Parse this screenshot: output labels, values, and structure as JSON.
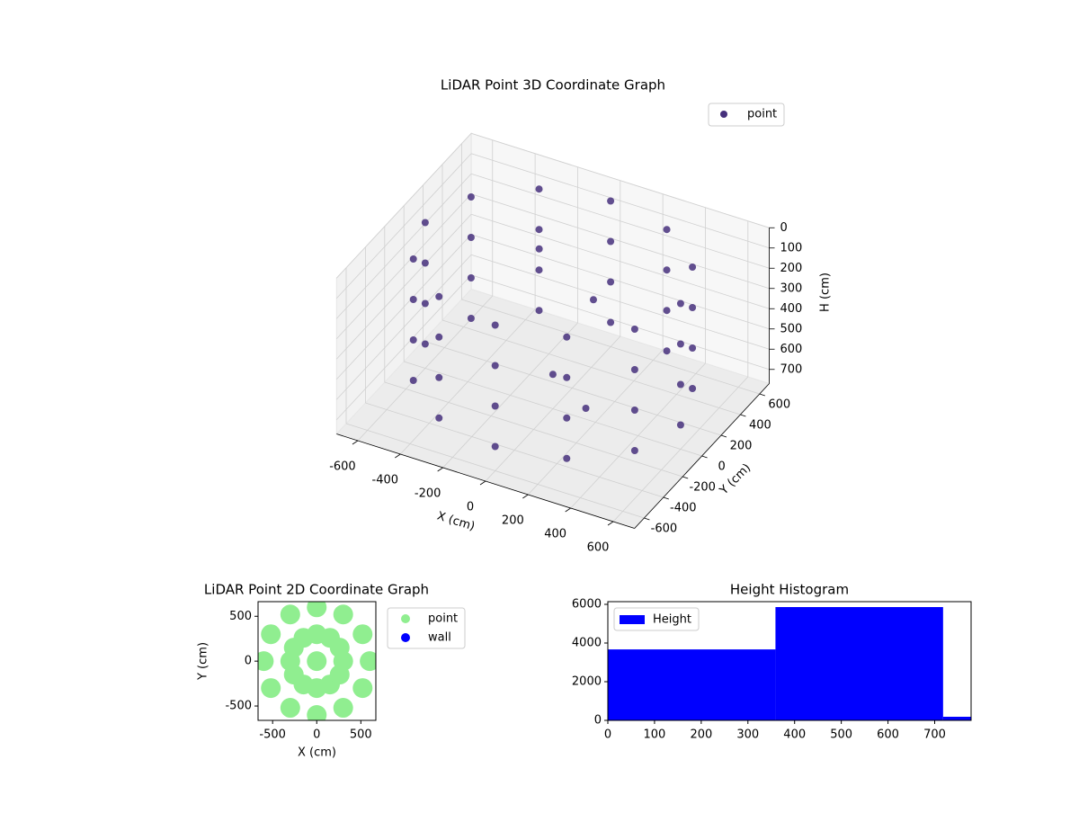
{
  "chart_data": [
    {
      "type": "scatter3d",
      "title": "LiDAR Point 3D Coordinate Graph",
      "xlabel": "X (cm)",
      "ylabel": "Y (cm)",
      "zlabel": "H (cm)",
      "xlim": [
        -700,
        700
      ],
      "ylim": [
        -700,
        700
      ],
      "zlim": [
        770,
        0
      ],
      "xticks": [
        -600,
        -400,
        -200,
        0,
        200,
        400,
        600
      ],
      "yticks": [
        -600,
        -400,
        -200,
        0,
        200,
        400,
        600
      ],
      "zticks": [
        0,
        100,
        200,
        300,
        400,
        500,
        600,
        700
      ],
      "grid": true,
      "legend": "upper right",
      "series": [
        {
          "name": "point",
          "color": "#46307c",
          "x": [
            600,
            520,
            300,
            0,
            -300,
            -520,
            -600,
            -520,
            -300,
            0,
            300,
            520,
            600,
            520,
            300,
            0,
            -300,
            -520,
            -600,
            -520,
            -300,
            0,
            300,
            520,
            600,
            520,
            300,
            0,
            -300,
            -520,
            -600,
            -520,
            -300,
            0,
            300,
            520,
            600,
            520,
            300,
            0,
            -300,
            -520,
            -600,
            -520,
            -300,
            0,
            300,
            520,
            -200,
            100,
            0,
            200
          ],
          "y": [
            0,
            300,
            520,
            600,
            520,
            300,
            0,
            -300,
            -520,
            -600,
            -520,
            -300,
            0,
            300,
            520,
            600,
            520,
            300,
            0,
            -300,
            -520,
            -600,
            -520,
            -300,
            0,
            300,
            520,
            600,
            520,
            300,
            0,
            -300,
            -520,
            -600,
            -520,
            -300,
            0,
            300,
            520,
            600,
            520,
            300,
            0,
            -300,
            -520,
            -600,
            -520,
            -300,
            300,
            200,
            0,
            -100
          ],
          "z": [
            50,
            50,
            50,
            50,
            50,
            50,
            50,
            50,
            50,
            50,
            50,
            50,
            250,
            250,
            250,
            250,
            250,
            250,
            250,
            250,
            250,
            250,
            250,
            250,
            450,
            450,
            450,
            450,
            450,
            450,
            450,
            450,
            450,
            450,
            450,
            450,
            650,
            650,
            650,
            650,
            650,
            650,
            650,
            650,
            650,
            650,
            650,
            650,
            200,
            300,
            600,
            650
          ]
        }
      ]
    },
    {
      "type": "scatter",
      "title": "LiDAR Point 2D Coordinate Graph",
      "xlabel": "X (cm)",
      "ylabel": "Y (cm)",
      "xlim": [
        -665,
        670
      ],
      "ylim": [
        -660,
        663
      ],
      "xticks": [
        -500,
        0,
        500
      ],
      "yticks": [
        -500,
        0,
        500
      ],
      "legend": "outside right",
      "series": [
        {
          "name": "point",
          "color": "#90ee90",
          "x": [
            600,
            520,
            300,
            0,
            -300,
            -520,
            -600,
            -520,
            -300,
            0,
            300,
            520,
            300,
            260,
            150,
            0,
            -150,
            -260,
            -300,
            -260,
            -150,
            0,
            150,
            260,
            0
          ],
          "y": [
            0,
            300,
            520,
            600,
            520,
            300,
            0,
            -300,
            -520,
            -600,
            -520,
            -300,
            0,
            150,
            260,
            300,
            260,
            150,
            0,
            -150,
            -260,
            -300,
            -260,
            -150,
            0
          ]
        },
        {
          "name": "wall",
          "color": "#0000ff",
          "x": [],
          "y": []
        }
      ]
    },
    {
      "type": "histogram",
      "title": "Height Histogram",
      "name": "Height",
      "color": "#0000ff",
      "bins": [
        0,
        359,
        718,
        1077
      ],
      "values": [
        3670,
        5860,
        186
      ],
      "xlim": [
        0,
        778
      ],
      "ylim": [
        0,
        6140
      ],
      "xticks": [
        0,
        100,
        200,
        300,
        400,
        500,
        600,
        700
      ],
      "yticks": [
        0,
        2000,
        4000,
        6000
      ],
      "legend": "upper left"
    }
  ]
}
